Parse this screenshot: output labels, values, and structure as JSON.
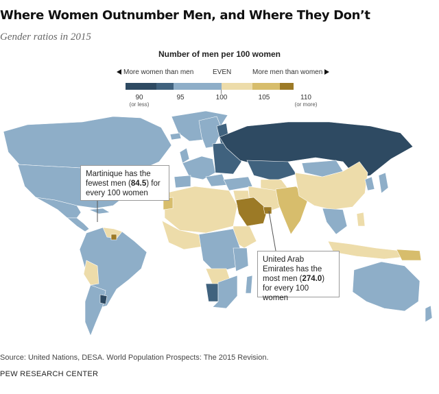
{
  "title": "Where Women Outnumber Men, and Where They Don’t",
  "subtitle": "Gender ratios in 2015",
  "legend": {
    "title": "Number of men per 100 women",
    "left_label": "More women than men",
    "center_label": "EVEN",
    "right_label": "More men than women",
    "ticks": [
      {
        "value": "90",
        "sub": "(or less)"
      },
      {
        "value": "95",
        "sub": ""
      },
      {
        "value": "100",
        "sub": ""
      },
      {
        "value": "105",
        "sub": ""
      },
      {
        "value": "110",
        "sub": "(or more)"
      }
    ],
    "colors": [
      "#2e4a62",
      "#40627e",
      "#8eaec8",
      "#eddcaa",
      "#d7bd6c",
      "#9c7a26"
    ]
  },
  "callouts": {
    "martinique": {
      "prefix": "Martinique has the fewest men (",
      "value": "84.5",
      "suffix": ") for every 100 women"
    },
    "uae": {
      "prefix": "United Arab Emirates has the most men (",
      "value": "274.0",
      "suffix": ") for every 100 women"
    }
  },
  "source": "Source: United Nations, DESA. World Population Prospects: The 2015 Revision.",
  "brand": "PEW RESEARCH CENTER"
}
